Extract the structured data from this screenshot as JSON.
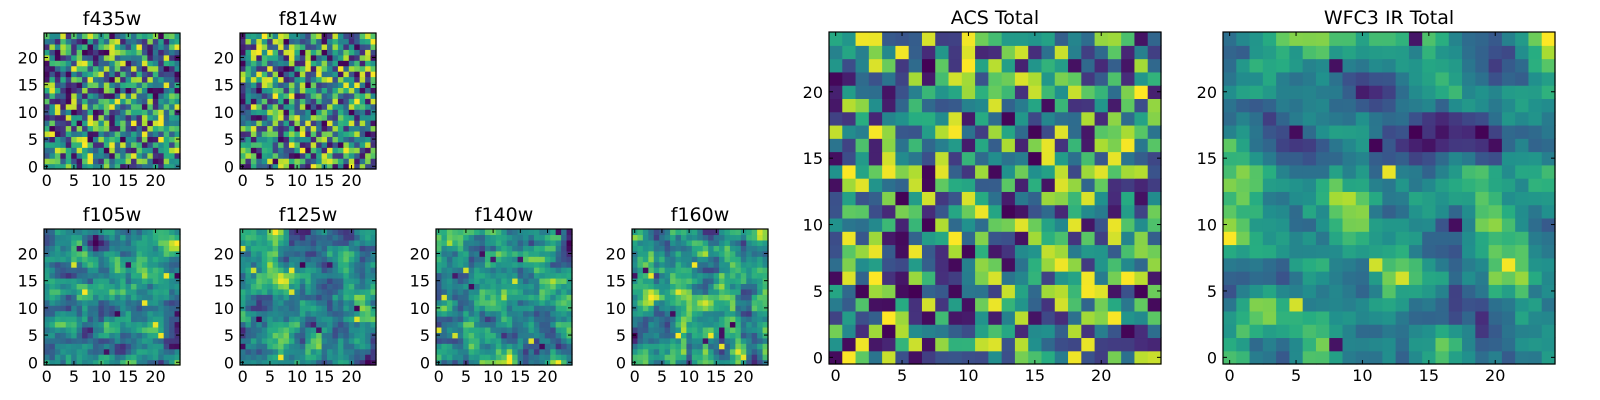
{
  "chart_data": [
    {
      "type": "heatmap",
      "title": "f435w",
      "shape": [
        25,
        25
      ],
      "xlim": [
        0,
        24
      ],
      "ylim": [
        0,
        24
      ],
      "xticks": [
        0,
        5,
        10,
        15,
        20
      ],
      "yticks": [
        0,
        5,
        10,
        15,
        20
      ],
      "xtick_labels": [
        "0",
        "5",
        "10",
        "15",
        "20"
      ],
      "ytick_labels": [
        "0",
        "5",
        "10",
        "15",
        "20"
      ],
      "colormap": "viridis",
      "seed": 11,
      "smooth": 0
    },
    {
      "type": "heatmap",
      "title": "f814w",
      "shape": [
        25,
        25
      ],
      "xlim": [
        0,
        24
      ],
      "ylim": [
        0,
        24
      ],
      "xticks": [
        0,
        5,
        10,
        15,
        20
      ],
      "yticks": [
        0,
        5,
        10,
        15,
        20
      ],
      "xtick_labels": [
        "0",
        "5",
        "10",
        "15",
        "20"
      ],
      "ytick_labels": [
        "0",
        "5",
        "10",
        "15",
        "20"
      ],
      "colormap": "viridis",
      "seed": 23,
      "smooth": 0
    },
    {
      "type": "heatmap",
      "title": "f105w",
      "shape": [
        25,
        25
      ],
      "xlim": [
        0,
        24
      ],
      "ylim": [
        0,
        24
      ],
      "xticks": [
        0,
        5,
        10,
        15,
        20
      ],
      "yticks": [
        0,
        5,
        10,
        15,
        20
      ],
      "xtick_labels": [
        "0",
        "5",
        "10",
        "15",
        "20"
      ],
      "ytick_labels": [
        "0",
        "5",
        "10",
        "15",
        "20"
      ],
      "colormap": "viridis",
      "seed": 37,
      "smooth": 1
    },
    {
      "type": "heatmap",
      "title": "f125w",
      "shape": [
        25,
        25
      ],
      "xlim": [
        0,
        24
      ],
      "ylim": [
        0,
        24
      ],
      "xticks": [
        0,
        5,
        10,
        15,
        20
      ],
      "yticks": [
        0,
        5,
        10,
        15,
        20
      ],
      "xtick_labels": [
        "0",
        "5",
        "10",
        "15",
        "20"
      ],
      "ytick_labels": [
        "0",
        "5",
        "10",
        "15",
        "20"
      ],
      "colormap": "viridis",
      "seed": 41,
      "smooth": 1
    },
    {
      "type": "heatmap",
      "title": "f140w",
      "shape": [
        25,
        25
      ],
      "xlim": [
        0,
        24
      ],
      "ylim": [
        0,
        24
      ],
      "xticks": [
        0,
        5,
        10,
        15,
        20
      ],
      "yticks": [
        0,
        5,
        10,
        15,
        20
      ],
      "xtick_labels": [
        "0",
        "5",
        "10",
        "15",
        "20"
      ],
      "ytick_labels": [
        "0",
        "5",
        "10",
        "15",
        "20"
      ],
      "colormap": "viridis",
      "seed": 53,
      "smooth": 1
    },
    {
      "type": "heatmap",
      "title": "f160w",
      "shape": [
        25,
        25
      ],
      "xlim": [
        0,
        24
      ],
      "ylim": [
        0,
        24
      ],
      "xticks": [
        0,
        5,
        10,
        15,
        20
      ],
      "yticks": [
        0,
        5,
        10,
        15,
        20
      ],
      "xtick_labels": [
        "0",
        "5",
        "10",
        "15",
        "20"
      ],
      "ytick_labels": [
        "0",
        "5",
        "10",
        "15",
        "20"
      ],
      "colormap": "viridis",
      "seed": 67,
      "smooth": 1
    },
    {
      "type": "heatmap",
      "title": "ACS Total",
      "shape": [
        25,
        25
      ],
      "xlim": [
        0,
        24
      ],
      "ylim": [
        0,
        24
      ],
      "xticks": [
        0,
        5,
        10,
        15,
        20
      ],
      "yticks": [
        0,
        5,
        10,
        15,
        20
      ],
      "xtick_labels": [
        "0",
        "5",
        "10",
        "15",
        "20"
      ],
      "ytick_labels": [
        "0",
        "5",
        "10",
        "15",
        "20"
      ],
      "colormap": "viridis",
      "seed": 79,
      "smooth": 0
    },
    {
      "type": "heatmap",
      "title": "WFC3 IR Total",
      "shape": [
        25,
        25
      ],
      "xlim": [
        0,
        24
      ],
      "ylim": [
        0,
        24
      ],
      "xticks": [
        0,
        5,
        10,
        15,
        20
      ],
      "yticks": [
        0,
        5,
        10,
        15,
        20
      ],
      "xtick_labels": [
        "0",
        "5",
        "10",
        "15",
        "20"
      ],
      "ytick_labels": [
        "0",
        "5",
        "10",
        "15",
        "20"
      ],
      "colormap": "viridis",
      "seed": 97,
      "smooth": 2
    }
  ]
}
